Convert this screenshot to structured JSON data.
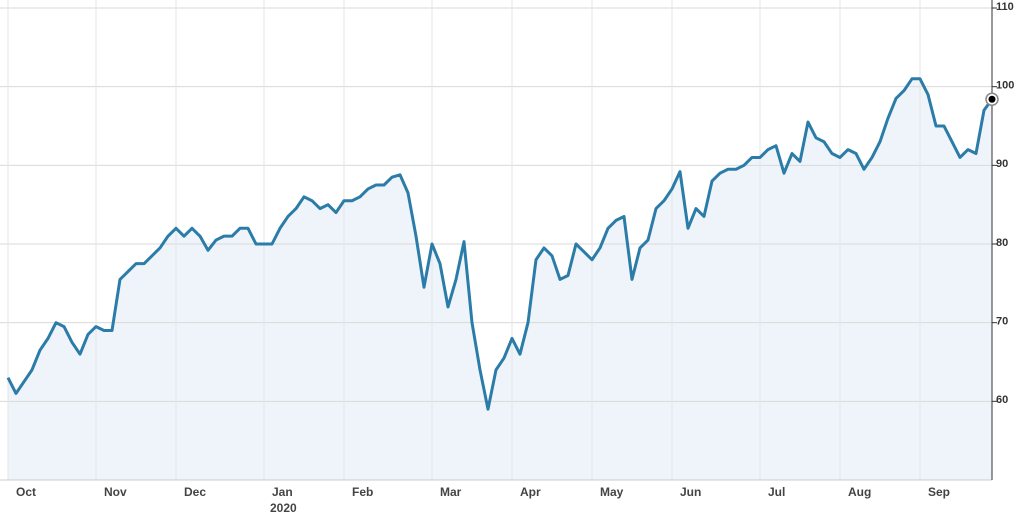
{
  "chart_data": {
    "type": "line",
    "categories": [
      "Oct",
      null,
      null,
      null,
      null,
      null,
      null,
      null,
      null,
      null,
      null,
      "Nov",
      null,
      null,
      null,
      null,
      null,
      null,
      null,
      null,
      null,
      "Dec",
      null,
      null,
      null,
      null,
      null,
      null,
      null,
      null,
      null,
      null,
      "Jan",
      null,
      null,
      null,
      null,
      null,
      null,
      null,
      null,
      null,
      "Feb",
      null,
      null,
      null,
      null,
      null,
      null,
      null,
      null,
      null,
      null,
      "Mar",
      null,
      null,
      null,
      null,
      null,
      null,
      null,
      null,
      null,
      "Apr",
      null,
      null,
      null,
      null,
      null,
      null,
      null,
      null,
      null,
      "May",
      null,
      null,
      null,
      null,
      null,
      null,
      null,
      null,
      null,
      "Jun",
      null,
      null,
      null,
      null,
      null,
      null,
      null,
      null,
      null,
      null,
      "Jul",
      null,
      null,
      null,
      null,
      null,
      null,
      null,
      null,
      null,
      "Aug",
      null,
      null,
      null,
      null,
      null,
      null,
      null,
      null,
      null,
      "Sep",
      null,
      null,
      null,
      null,
      null,
      null,
      null,
      null,
      null
    ],
    "year_label": "2020",
    "values": [
      63,
      61,
      62.5,
      64,
      66.5,
      68,
      70,
      69.5,
      67.5,
      66,
      68.5,
      69.5,
      69,
      69,
      75.5,
      76.5,
      77.5,
      77.5,
      78.5,
      79.5,
      81,
      82,
      81,
      82,
      81,
      79.2,
      80.5,
      81,
      81,
      82,
      82,
      80,
      80,
      80,
      82,
      83.5,
      84.5,
      86,
      85.5,
      84.5,
      85,
      84,
      85.5,
      85.5,
      86,
      87,
      87.5,
      87.5,
      88.5,
      88.8,
      86.5,
      81,
      74.5,
      80,
      77.5,
      72,
      75.5,
      80.3,
      70,
      64,
      59,
      64,
      65.5,
      68,
      66,
      70,
      78,
      79.5,
      78.5,
      75.5,
      76,
      80,
      79,
      78,
      79.5,
      82,
      83,
      83.5,
      75.5,
      79.5,
      80.5,
      84.5,
      85.5,
      87,
      89.2,
      82,
      84.5,
      83.5,
      88,
      89,
      89.5,
      89.5,
      90,
      91,
      91,
      92,
      92.5,
      89,
      91.5,
      90.5,
      95.5,
      93.5,
      93,
      91.5,
      91,
      92,
      91.5,
      89.5,
      91,
      93,
      96,
      98.5,
      99.5,
      101,
      101,
      99,
      95,
      95,
      93,
      91,
      92,
      91.5,
      97,
      98.4
    ],
    "color": "#2b7ca8",
    "fill_color": "#eef4fa",
    "ylim": [
      50,
      110
    ],
    "yticks": [
      60,
      70,
      80,
      90,
      100,
      110
    ],
    "grid": true
  }
}
